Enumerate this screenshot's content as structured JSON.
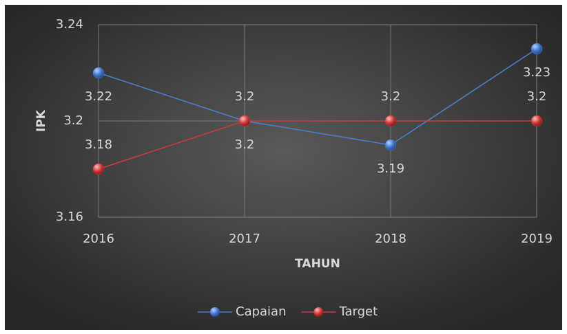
{
  "chart_data": {
    "type": "line",
    "x_label": "TAHUN",
    "y_label": "IPK",
    "categories": [
      "2016",
      "2017",
      "2018",
      "2019"
    ],
    "series": [
      {
        "name": "Capaian",
        "color": "#4a7fd0",
        "values": [
          3.22,
          3.2,
          3.19,
          3.23
        ],
        "label_position": "below"
      },
      {
        "name": "Target",
        "color": "#d03a3a",
        "values": [
          3.18,
          3.2,
          3.2,
          3.2
        ],
        "label_position": "above"
      }
    ],
    "ylim": [
      3.16,
      3.24
    ],
    "yticks": [
      3.16,
      3.2,
      3.24
    ],
    "grid": true,
    "legend": "bottom"
  }
}
